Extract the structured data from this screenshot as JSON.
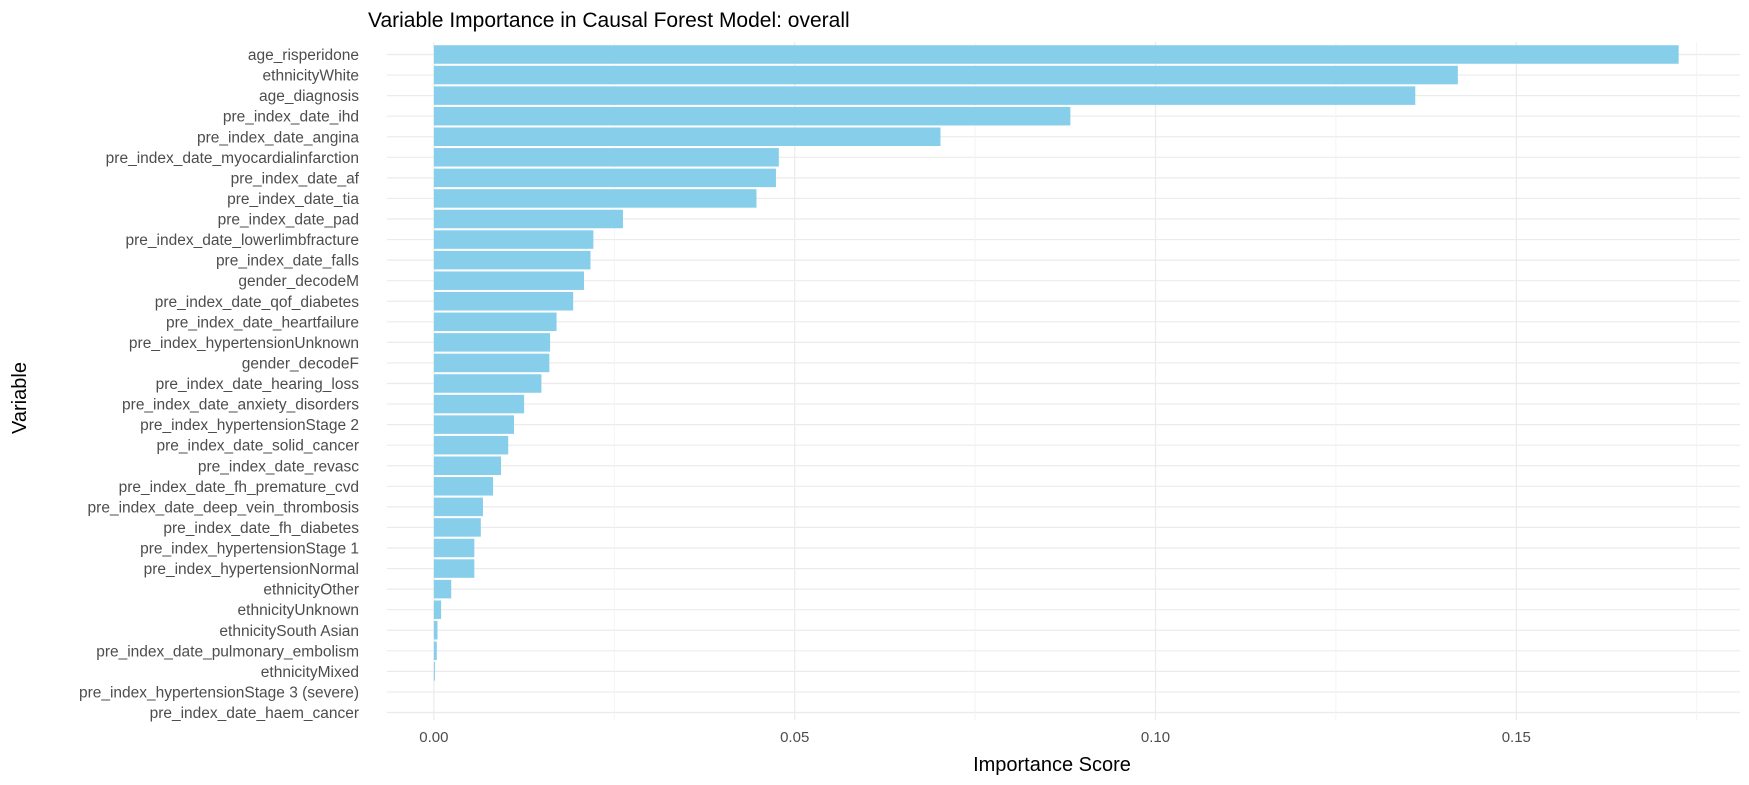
{
  "chart_data": {
    "type": "bar",
    "orientation": "horizontal",
    "title": "Variable Importance in Causal Forest Model: overall",
    "xlabel": "Importance Score",
    "ylabel": "Variable",
    "xlim": [
      -0.0065,
      0.181
    ],
    "xticks": [
      0.0,
      0.05,
      0.1,
      0.15
    ],
    "xtick_labels": [
      "0.00",
      "0.05",
      "0.10",
      "0.15"
    ],
    "grid": true,
    "bar_color": "#87CEEB",
    "categories": [
      "age_risperidone",
      "ethnicityWhite",
      "age_diagnosis",
      "pre_index_date_ihd",
      "pre_index_date_angina",
      "pre_index_date_myocardialinfarction",
      "pre_index_date_af",
      "pre_index_date_tia",
      "pre_index_date_pad",
      "pre_index_date_lowerlimbfracture",
      "pre_index_date_falls",
      "gender_decodeM",
      "pre_index_date_qof_diabetes",
      "pre_index_date_heartfailure",
      "pre_index_hypertensionUnknown",
      "gender_decodeF",
      "pre_index_date_hearing_loss",
      "pre_index_date_anxiety_disorders",
      "pre_index_hypertensionStage 2",
      "pre_index_date_solid_cancer",
      "pre_index_date_revasc",
      "pre_index_date_fh_premature_cvd",
      "pre_index_date_deep_vein_thrombosis",
      "pre_index_date_fh_diabetes",
      "pre_index_hypertensionStage 1",
      "pre_index_hypertensionNormal",
      "ethnicityOther",
      "ethnicityUnknown",
      "ethnicitySouth Asian",
      "pre_index_date_pulmonary_embolism",
      "ethnicityMixed",
      "pre_index_hypertensionStage 3 (severe)",
      "pre_index_date_haem_cancer"
    ],
    "values": [
      0.1725,
      0.1419,
      0.136,
      0.0882,
      0.0702,
      0.0478,
      0.0474,
      0.0447,
      0.0262,
      0.0221,
      0.0217,
      0.0208,
      0.0193,
      0.017,
      0.0161,
      0.016,
      0.0149,
      0.0125,
      0.0111,
      0.0103,
      0.0093,
      0.0082,
      0.0068,
      0.0065,
      0.0056,
      0.0056,
      0.0024,
      0.001,
      0.0005,
      0.0004,
      0.0001,
      0.0,
      0.0
    ]
  }
}
